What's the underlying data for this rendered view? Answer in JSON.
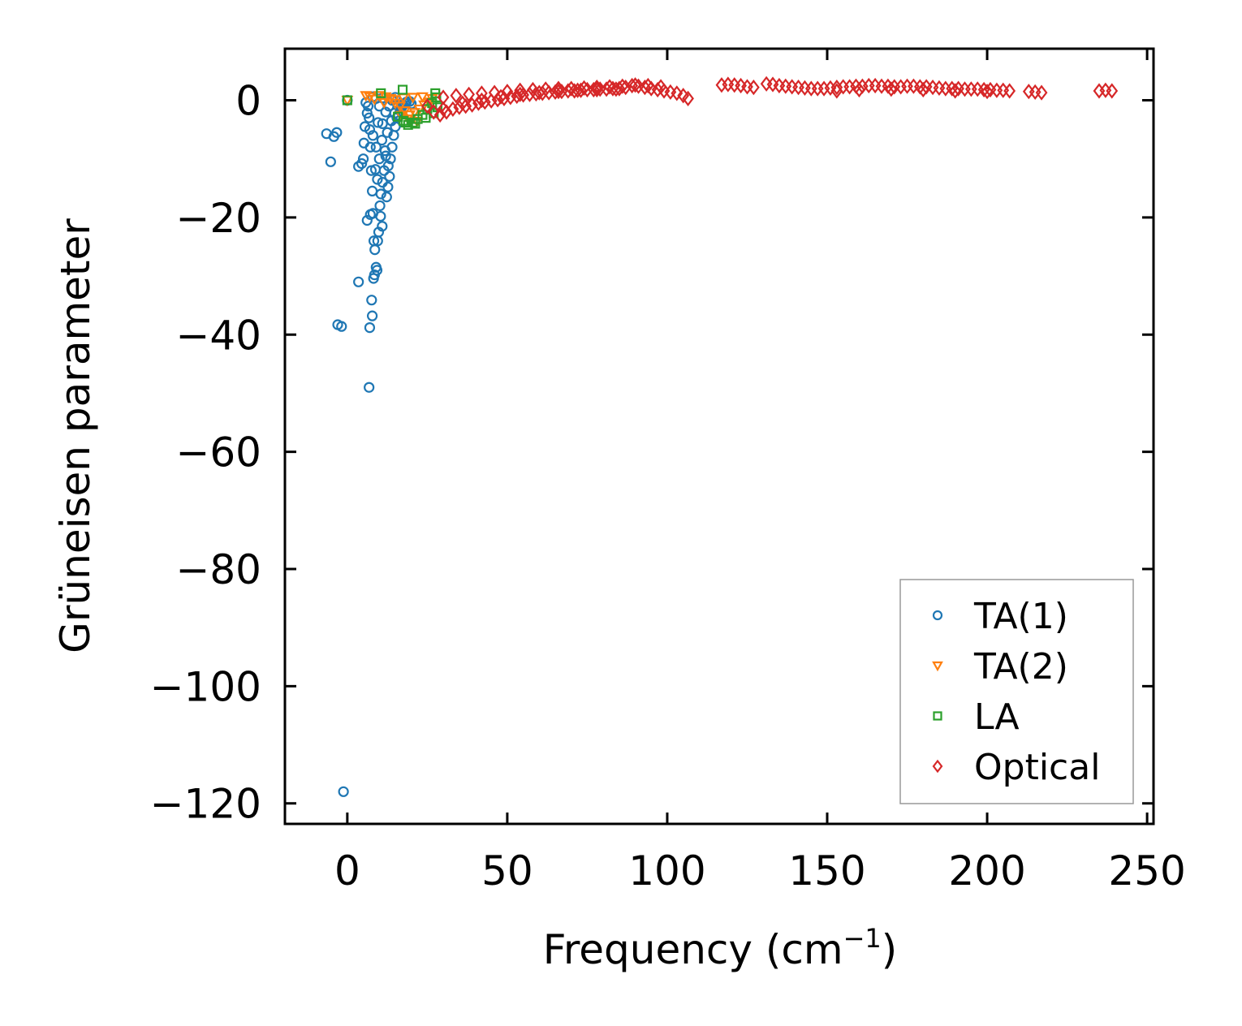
{
  "chart_data": {
    "type": "scatter",
    "title": "",
    "xlabel": "Frequency (cm",
    "xlabel_sup": "−1",
    "xlabel_close": ")",
    "ylabel": "Grüneisen parameter",
    "xlim": [
      -19.5,
      252
    ],
    "ylim": [
      -123.5,
      8.8
    ],
    "xticks": [
      0,
      50,
      100,
      150,
      200,
      250
    ],
    "yticks": [
      0,
      -20,
      -40,
      -60,
      -80,
      -100,
      -120
    ],
    "xtick_labels": [
      "0",
      "50",
      "100",
      "150",
      "200",
      "250"
    ],
    "ytick_labels": [
      "0",
      "−20",
      "−40",
      "−60",
      "−80",
      "−100",
      "−120"
    ],
    "legend_position": "lower right",
    "series": [
      {
        "name": "TA(1)",
        "label": "TA(1)",
        "marker": "circle",
        "color": "#1f77b4",
        "points": [
          [
            0,
            0
          ],
          [
            -1.2,
            -118
          ],
          [
            -3,
            -38.3
          ],
          [
            -1.8,
            -38.6
          ],
          [
            -6.5,
            -5.7
          ],
          [
            -4.2,
            -6.2
          ],
          [
            -3.3,
            -5.5
          ],
          [
            -5.2,
            -10.5
          ],
          [
            3.5,
            -11.3
          ],
          [
            4.5,
            -10.8
          ],
          [
            5,
            -10
          ],
          [
            5.2,
            -7.3
          ],
          [
            5.5,
            -4.5
          ],
          [
            5.8,
            -0.4
          ],
          [
            6.2,
            -2.2
          ],
          [
            6.5,
            -1
          ],
          [
            6.8,
            -3
          ],
          [
            7,
            -5
          ],
          [
            7.2,
            -8
          ],
          [
            7.5,
            -12
          ],
          [
            7.8,
            -15.5
          ],
          [
            8,
            -19.3
          ],
          [
            8.3,
            -24
          ],
          [
            8.6,
            -25.5
          ],
          [
            9,
            -28.5
          ],
          [
            9.3,
            -29
          ],
          [
            8.5,
            -29.8
          ],
          [
            8.2,
            -30.4
          ],
          [
            3.5,
            -31
          ],
          [
            7.6,
            -34.1
          ],
          [
            7.8,
            -36.8
          ],
          [
            7,
            -38.8
          ],
          [
            6.8,
            -49
          ],
          [
            6.2,
            -20.5
          ],
          [
            7.2,
            -19.5
          ],
          [
            9.8,
            -22.5
          ],
          [
            9.5,
            -24
          ],
          [
            10.2,
            -18
          ],
          [
            10.5,
            -16
          ],
          [
            11,
            -14
          ],
          [
            11.5,
            -12
          ],
          [
            12,
            -9.5
          ],
          [
            12.3,
            -16.5
          ],
          [
            12.7,
            -14.8
          ],
          [
            13.2,
            -13
          ],
          [
            13.5,
            -10
          ],
          [
            14,
            -8
          ],
          [
            14.5,
            -6
          ],
          [
            15,
            -4.5
          ],
          [
            15.5,
            -3
          ],
          [
            16,
            -2.5
          ],
          [
            16.5,
            -1.8
          ],
          [
            17,
            -1.2
          ],
          [
            17.5,
            -0.8
          ],
          [
            18,
            -0.5
          ],
          [
            18.5,
            -0.3
          ],
          [
            19.5,
            -0.2
          ],
          [
            20,
            -0.6
          ],
          [
            8,
            -6
          ],
          [
            9,
            -8
          ],
          [
            10,
            -10
          ],
          [
            11,
            -4
          ],
          [
            12,
            -2
          ],
          [
            13,
            -1
          ],
          [
            14,
            0
          ],
          [
            15,
            0.5
          ],
          [
            10,
            -1
          ],
          [
            9,
            0.3
          ],
          [
            8,
            0.6
          ],
          [
            11,
            0.4
          ],
          [
            12.5,
            -5.5
          ],
          [
            13.8,
            -3.5
          ],
          [
            14.8,
            -2.2
          ],
          [
            9.6,
            -3.8
          ],
          [
            10.8,
            -6.8
          ],
          [
            11.8,
            -8.6
          ],
          [
            12.8,
            -11.2
          ],
          [
            8.8,
            -11.8
          ],
          [
            9.4,
            -13.5
          ],
          [
            10.4,
            -19.8
          ],
          [
            10.9,
            -21.5
          ]
        ]
      },
      {
        "name": "TA(2)",
        "label": "TA(2)",
        "marker": "triangle-down",
        "color": "#ff7f0e",
        "points": [
          [
            0,
            0
          ],
          [
            5.8,
            0.8
          ],
          [
            7,
            0.6
          ],
          [
            8.5,
            0.2
          ],
          [
            10,
            0.8
          ],
          [
            12,
            0.6
          ],
          [
            13.5,
            0.3
          ],
          [
            15,
            -0.5
          ],
          [
            16.5,
            -1
          ],
          [
            18,
            -1.8
          ],
          [
            19.5,
            -2.5
          ],
          [
            21,
            -2.1
          ],
          [
            22.5,
            -1.5
          ],
          [
            24,
            -0.8
          ],
          [
            25.5,
            -0.3
          ],
          [
            26.5,
            0.3
          ],
          [
            23.5,
            0.6
          ],
          [
            20.5,
            0.5
          ],
          [
            17.5,
            0.4
          ],
          [
            14.5,
            0.1
          ],
          [
            11.5,
            -0.4
          ],
          [
            19,
            -3.2
          ],
          [
            21.8,
            -3.6
          ],
          [
            16.8,
            -2.6
          ]
        ]
      },
      {
        "name": "LA",
        "label": "LA",
        "marker": "square",
        "color": "#2ca02c",
        "points": [
          [
            0,
            0
          ],
          [
            10.5,
            1.2
          ],
          [
            17.3,
            1.8
          ],
          [
            27.5,
            1.2
          ],
          [
            27.8,
            0.5
          ],
          [
            26.5,
            -0.5
          ],
          [
            25,
            -1.5
          ],
          [
            23.5,
            -2.5
          ],
          [
            22,
            -3.2
          ],
          [
            20.5,
            -3.8
          ],
          [
            19,
            -4.2
          ],
          [
            17.5,
            -3.5
          ],
          [
            28.2,
            -1.2
          ],
          [
            27,
            -2.2
          ],
          [
            24.5,
            -3
          ],
          [
            21.2,
            -4
          ],
          [
            18.2,
            -3.8
          ],
          [
            15.8,
            -2.8
          ]
        ]
      },
      {
        "name": "Optical",
        "label": "Optical",
        "marker": "diamond",
        "color": "#d62728",
        "points": [
          [
            25,
            -1
          ],
          [
            27,
            -2
          ],
          [
            29,
            -2.5
          ],
          [
            31,
            -2
          ],
          [
            33,
            -1.5
          ],
          [
            35,
            -1.2
          ],
          [
            37,
            -1
          ],
          [
            39,
            -0.8
          ],
          [
            41,
            -0.5
          ],
          [
            43,
            -0.3
          ],
          [
            45,
            -0.1
          ],
          [
            47,
            0.1
          ],
          [
            49,
            0.3
          ],
          [
            51,
            0.5
          ],
          [
            53,
            0.7
          ],
          [
            55,
            0.9
          ],
          [
            57,
            1
          ],
          [
            59,
            1.1
          ],
          [
            61,
            1.2
          ],
          [
            63,
            1.3
          ],
          [
            65,
            1.4
          ],
          [
            67,
            1.5
          ],
          [
            69,
            1.6
          ],
          [
            71,
            1.6
          ],
          [
            73,
            1.7
          ],
          [
            75,
            1.8
          ],
          [
            77,
            1.8
          ],
          [
            79,
            1.9
          ],
          [
            81,
            1.9
          ],
          [
            83,
            2
          ],
          [
            85,
            2
          ],
          [
            87,
            2.2
          ],
          [
            89,
            2.5
          ],
          [
            91,
            2.4
          ],
          [
            93,
            2.2
          ],
          [
            95,
            2
          ],
          [
            97,
            1.8
          ],
          [
            99,
            1.6
          ],
          [
            101,
            1.4
          ],
          [
            103,
            1.2
          ],
          [
            105,
            0.8
          ],
          [
            106.5,
            0.3
          ],
          [
            30,
            0.5
          ],
          [
            34,
            0.8
          ],
          [
            38,
            1
          ],
          [
            42,
            1.2
          ],
          [
            46,
            1.3
          ],
          [
            50,
            1.5
          ],
          [
            54,
            1.7
          ],
          [
            58,
            1.8
          ],
          [
            62,
            1.9
          ],
          [
            66,
            2
          ],
          [
            70,
            2
          ],
          [
            74,
            2.1
          ],
          [
            78,
            2.2
          ],
          [
            82,
            2.3
          ],
          [
            86,
            2.4
          ],
          [
            90,
            2.6
          ],
          [
            94,
            2.5
          ],
          [
            98,
            2.3
          ],
          [
            30,
            -1.5
          ],
          [
            36,
            -0.5
          ],
          [
            42,
            0
          ],
          [
            48,
            0.6
          ],
          [
            54,
            1
          ],
          [
            60,
            1.3
          ],
          [
            66,
            1.5
          ],
          [
            72,
            1.7
          ],
          [
            78,
            1.8
          ],
          [
            84,
            1.9
          ],
          [
            117,
            2.6
          ],
          [
            119,
            2.7
          ],
          [
            121,
            2.6
          ],
          [
            123,
            2.5
          ],
          [
            125,
            2.3
          ],
          [
            127,
            2.2
          ],
          [
            131,
            2.8
          ],
          [
            133,
            2.7
          ],
          [
            135,
            2.5
          ],
          [
            137,
            2.4
          ],
          [
            139,
            2.3
          ],
          [
            141,
            2.2
          ],
          [
            143,
            2.1
          ],
          [
            145,
            2
          ],
          [
            147,
            2
          ],
          [
            149,
            2
          ],
          [
            151,
            2.1
          ],
          [
            153,
            2.2
          ],
          [
            155,
            2.3
          ],
          [
            157,
            2.3
          ],
          [
            159,
            2.4
          ],
          [
            161,
            2.4
          ],
          [
            163,
            2.5
          ],
          [
            165,
            2.5
          ],
          [
            167,
            2.4
          ],
          [
            169,
            2.4
          ],
          [
            171,
            2.3
          ],
          [
            173,
            2.3
          ],
          [
            175,
            2.4
          ],
          [
            177,
            2.4
          ],
          [
            179,
            2.3
          ],
          [
            181,
            2.3
          ],
          [
            183,
            2.2
          ],
          [
            185,
            2.1
          ],
          [
            187,
            2
          ],
          [
            189,
            2
          ],
          [
            191,
            2
          ],
          [
            193,
            1.9
          ],
          [
            195,
            1.9
          ],
          [
            197,
            1.9
          ],
          [
            199,
            1.8
          ],
          [
            201,
            1.8
          ],
          [
            203,
            1.7
          ],
          [
            205,
            1.7
          ],
          [
            207,
            1.6
          ],
          [
            213,
            1.5
          ],
          [
            215,
            1.4
          ],
          [
            217,
            1.3
          ],
          [
            235,
            1.6
          ],
          [
            237,
            1.7
          ],
          [
            239,
            1.6
          ],
          [
            153,
            1.6
          ],
          [
            160,
            1.8
          ],
          [
            170,
            1.9
          ],
          [
            180,
            1.8
          ],
          [
            190,
            1.6
          ],
          [
            200,
            1.5
          ]
        ]
      }
    ]
  }
}
